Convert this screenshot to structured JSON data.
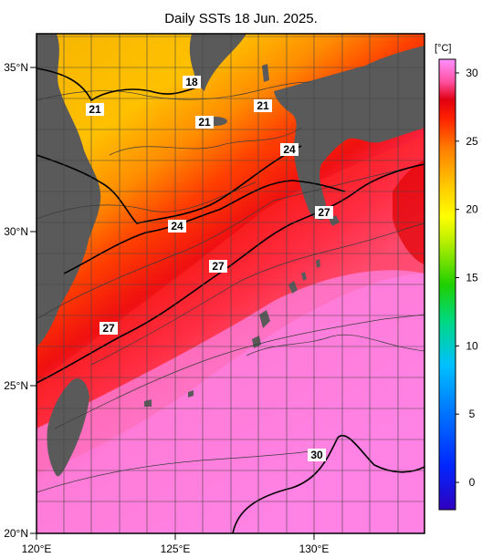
{
  "title": "Daily SSTs 18 Jun. 2025.",
  "colorbar": {
    "unit": "[°C]",
    "ticks": [
      0,
      5,
      10,
      15,
      20,
      25,
      30
    ],
    "min": -2,
    "max": 31,
    "colors": [
      "#2a00c8",
      "#0033ff",
      "#0080ff",
      "#00c8ff",
      "#00e0a0",
      "#00d000",
      "#80e000",
      "#ffff00",
      "#ffc800",
      "#ff8c00",
      "#ff3000",
      "#e00000",
      "#ff4080",
      "#ff80d0",
      "#ff90ff"
    ]
  },
  "axes": {
    "x_ticks": [
      "120°E",
      "125°E",
      "130°E"
    ],
    "y_ticks": [
      "35°N",
      "30°N",
      "25°N",
      "20°N"
    ],
    "lon_range": [
      120,
      134
    ],
    "lat_range": [
      20,
      36
    ]
  },
  "contour_labels": [
    "18",
    "21",
    "21",
    "21",
    "24",
    "24",
    "27",
    "27",
    "27",
    "30"
  ]
}
